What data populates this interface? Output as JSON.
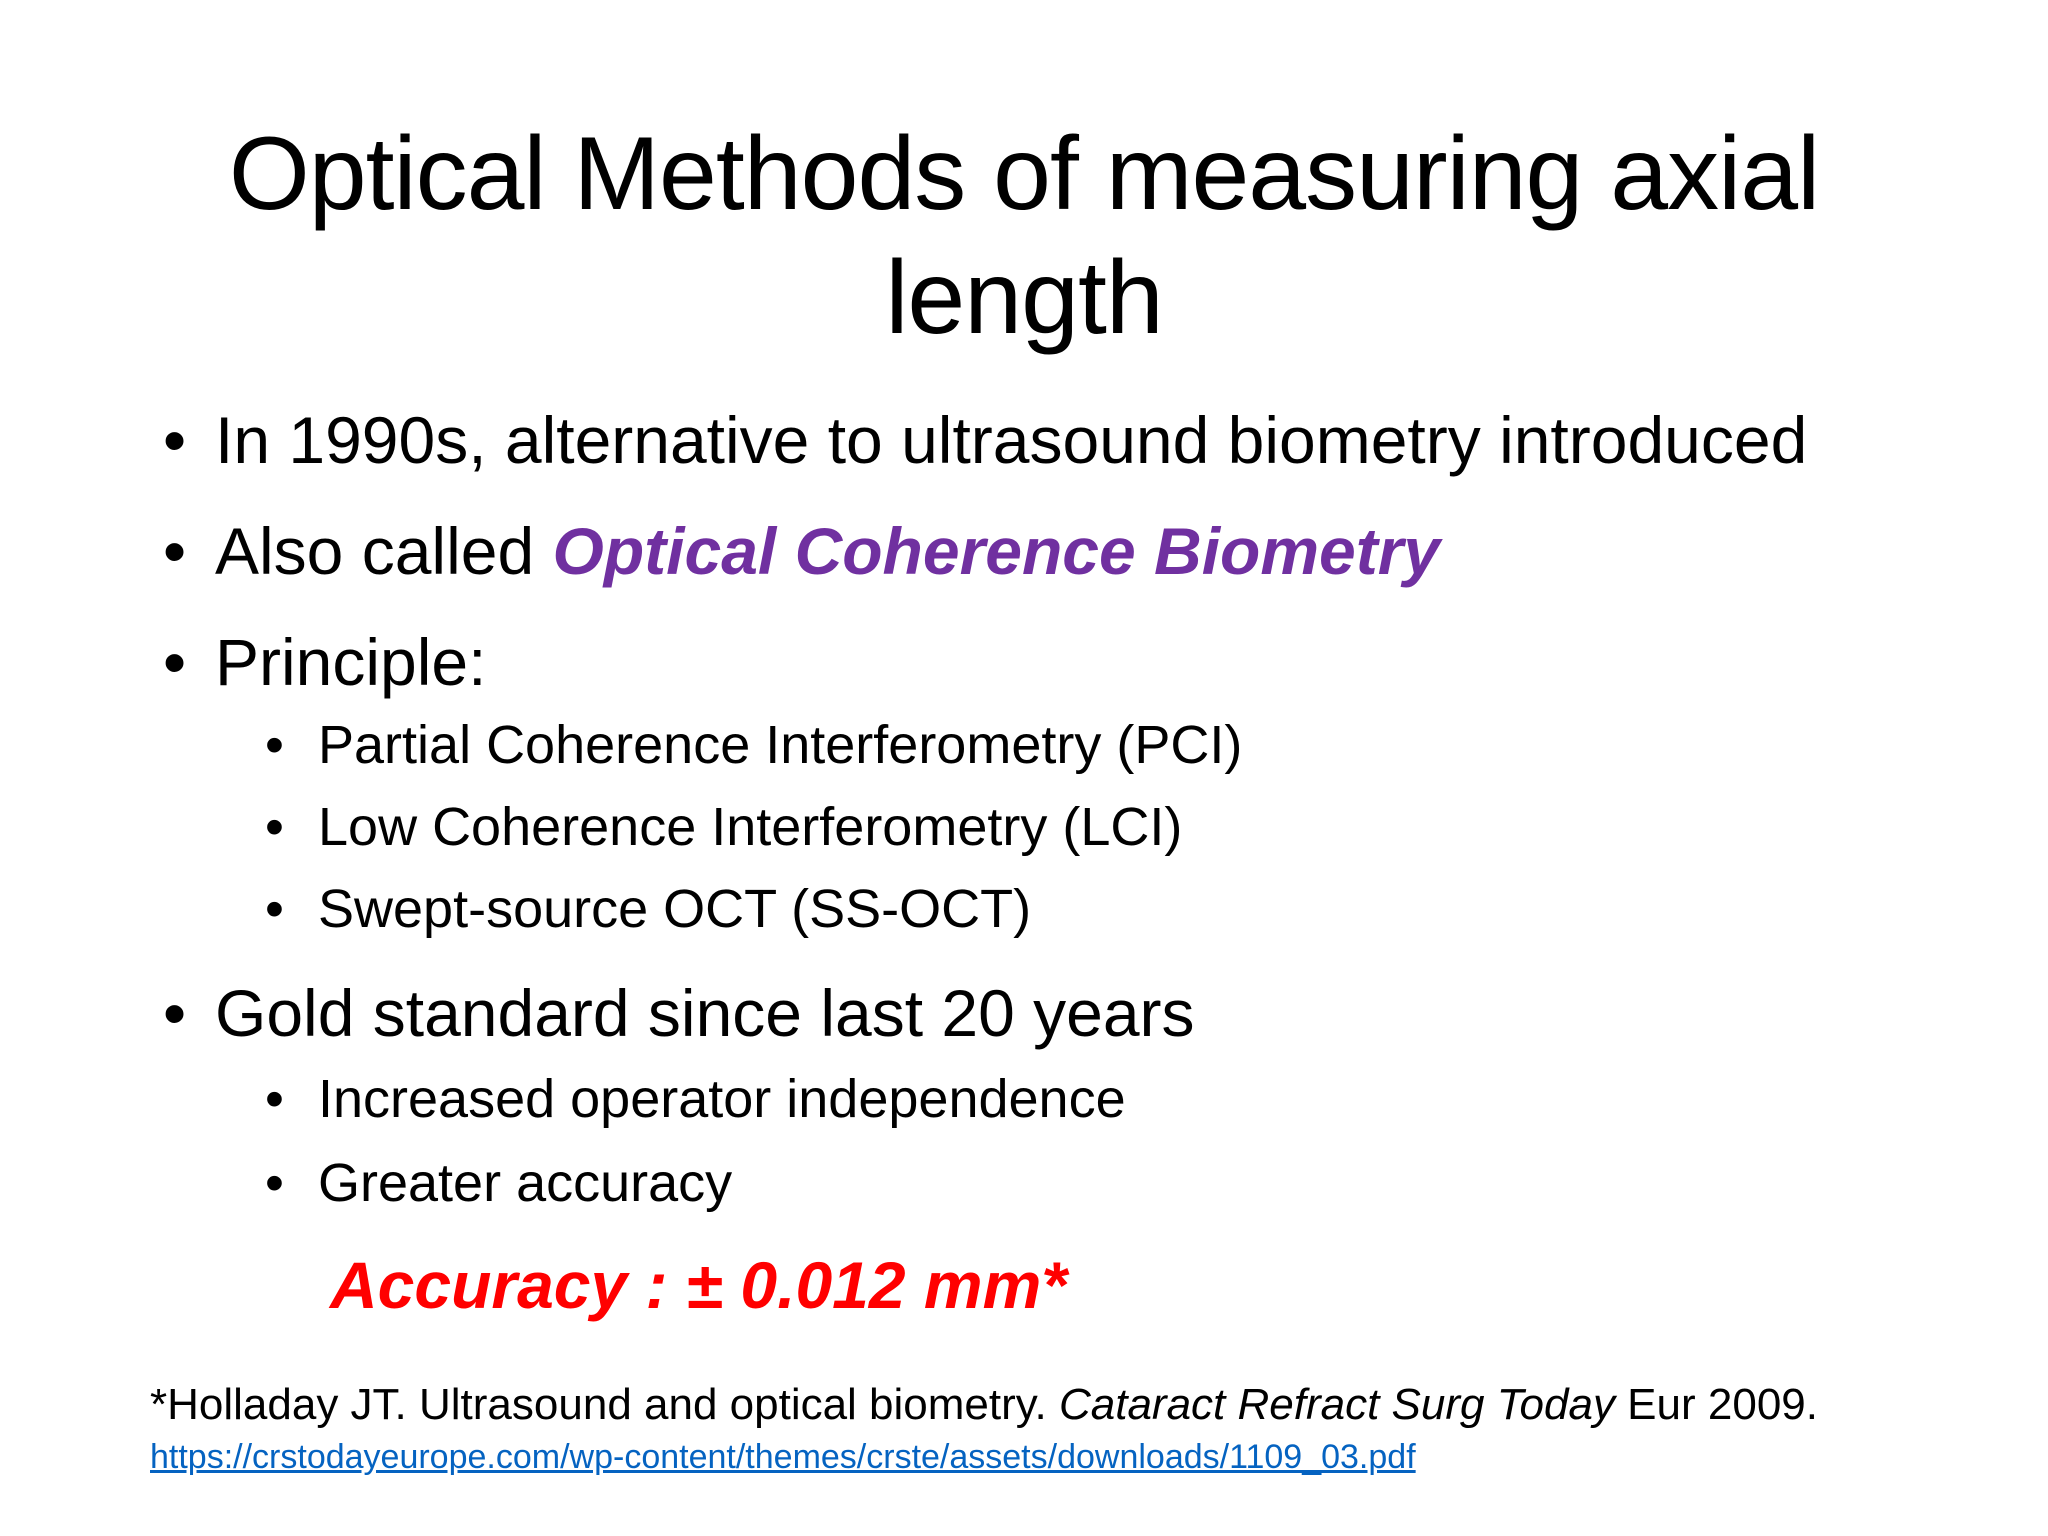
{
  "slide": {
    "title": "Optical Methods of measuring axial length",
    "bullets": [
      {
        "text": "In 1990s, alternative to ultrasound biometry introduced"
      },
      {
        "prefix": "Also called ",
        "emphasis": "Optical Coherence Biometry"
      },
      {
        "text": "Principle:"
      },
      {
        "text": "Gold standard since last 20 years"
      }
    ],
    "principles": [
      "Partial Coherence Interferometry (PCI)",
      "Low Coherence Interferometry (LCI)",
      "Swept-source OCT (SS-OCT)"
    ],
    "benefits": [
      "Increased operator independence",
      "Greater accuracy"
    ],
    "bullet_symbol": "•",
    "accuracy": "Accuracy : ± 0.012 mm*",
    "citation": {
      "prefix": "*Holladay JT. Ultrasound and optical biometry. ",
      "journal": "Cataract Refract Surg Today",
      "suffix": " Eur 2009."
    },
    "link": "https://crstodayeurope.com/wp-content/themes/crste/assets/downloads/1109_03.pdf"
  },
  "colors": {
    "emphasis": "#7030a0",
    "accuracy": "#ff0000",
    "link": "#0563c1"
  }
}
